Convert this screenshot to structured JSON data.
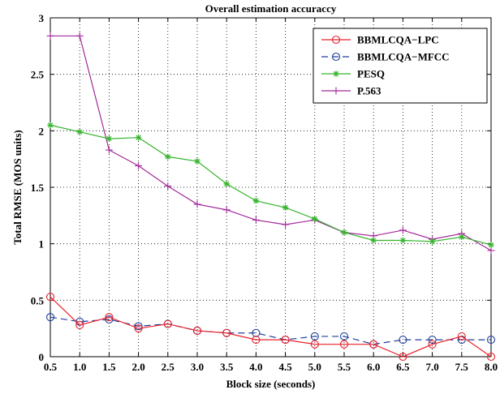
{
  "chart_data": {
    "type": "line",
    "title": "Overall estimation accuraccy",
    "xlabel": "Block size (seconds)",
    "ylabel": "Total RMSE (MOS units)",
    "x": [
      0.5,
      1.0,
      1.5,
      2.0,
      2.5,
      3.0,
      3.5,
      4.0,
      4.5,
      5.0,
      5.5,
      6.0,
      6.5,
      7.0,
      7.5,
      8.0
    ],
    "x_tick_labels": [
      "0.5",
      "1.0",
      "1.5",
      "2.0",
      "2.5",
      "3.0",
      "3.5",
      "4.0",
      "4.5",
      "5.0",
      "5.5",
      "6.0",
      "6.5",
      "7.0",
      "7.5",
      "8.0"
    ],
    "y_ticks": [
      0,
      0.5,
      1,
      1.5,
      2,
      2.5,
      3
    ],
    "y_tick_labels": [
      "0",
      "0.5",
      "1",
      "1.5",
      "2",
      "2.5",
      "3"
    ],
    "xlim": [
      0.5,
      8.0
    ],
    "ylim": [
      0,
      3
    ],
    "grid": true,
    "legend_position": "top-right",
    "series": [
      {
        "name": "BBMLCQA−LPC",
        "color": "#e8202a",
        "marker": "circle",
        "line_style": "solid",
        "values": [
          0.53,
          0.28,
          0.35,
          0.25,
          0.29,
          0.23,
          0.21,
          0.15,
          0.15,
          0.11,
          0.11,
          0.11,
          0.0,
          0.11,
          0.18,
          0.0
        ]
      },
      {
        "name": "BBMLCQA−MFCC",
        "color": "#1f3f9c",
        "marker": "circle",
        "line_style": "dashed",
        "values": [
          0.35,
          0.31,
          0.33,
          0.27,
          0.29,
          0.23,
          0.21,
          0.21,
          0.15,
          0.18,
          0.18,
          0.11,
          0.15,
          0.15,
          0.15,
          0.15
        ]
      },
      {
        "name": "PESQ",
        "color": "#35b42c",
        "marker": "star",
        "line_style": "solid",
        "values": [
          2.05,
          1.99,
          1.93,
          1.94,
          1.77,
          1.73,
          1.53,
          1.38,
          1.32,
          1.22,
          1.1,
          1.03,
          1.03,
          1.02,
          1.06,
          0.99
        ]
      },
      {
        "name": "P.563",
        "color": "#a3299b",
        "marker": "plus",
        "line_style": "solid",
        "values": [
          2.84,
          2.84,
          1.83,
          1.69,
          1.51,
          1.35,
          1.3,
          1.21,
          1.17,
          1.21,
          1.1,
          1.07,
          1.12,
          1.04,
          1.09,
          0.94
        ]
      }
    ]
  }
}
